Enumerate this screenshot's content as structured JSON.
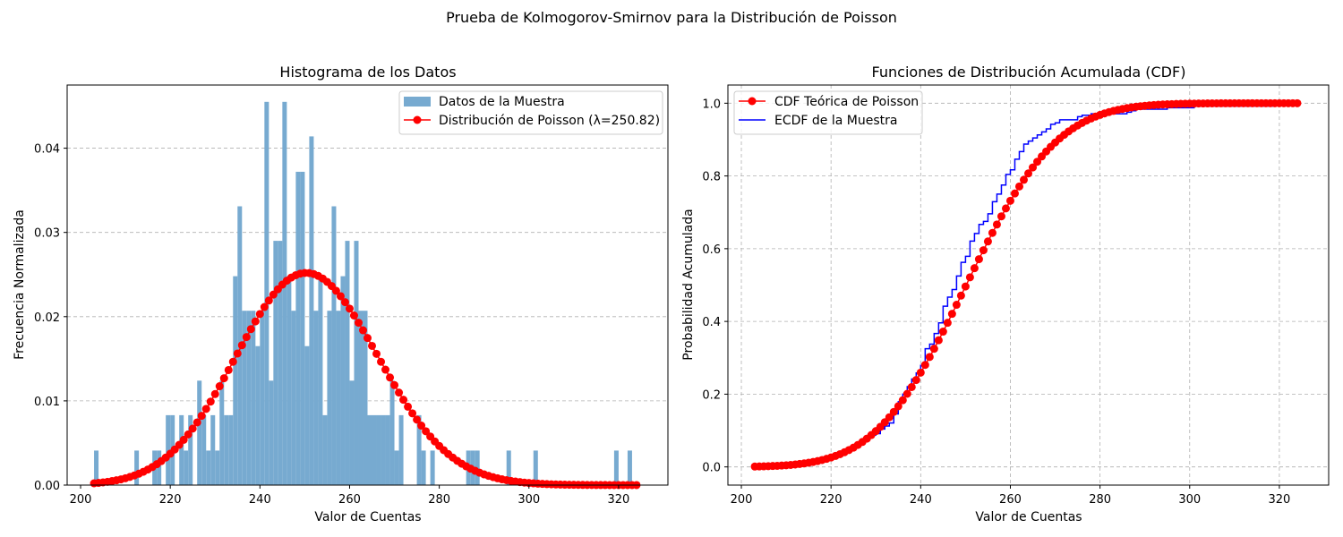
{
  "figure": {
    "suptitle": "Prueba de Kolmogorov-Smirnov para la Distribución de Poisson"
  },
  "colors": {
    "bars": "#77aad0",
    "poisson": "#ff0000",
    "ecdf": "#0000ff",
    "grid": "#b0b0b0"
  },
  "chart_data": [
    {
      "type": "bar",
      "title": "Histograma de los Datos",
      "xlabel": "Valor de Cuentas",
      "ylabel": "Frecuencia Normalizada",
      "xlim": [
        197,
        331
      ],
      "ylim": [
        0,
        0.0475
      ],
      "xticks": [
        200,
        220,
        240,
        260,
        280,
        300,
        320
      ],
      "yticks": [
        0.0,
        0.01,
        0.02,
        0.03,
        0.04
      ],
      "ytick_labels": [
        "0.00",
        "0.01",
        "0.02",
        "0.03",
        "0.04"
      ],
      "grid": "y",
      "legend_loc": "upper right",
      "legend": [
        "Datos de la Muestra",
        "Distribución de Poisson (λ=250.82)"
      ],
      "histogram": {
        "x_min": 203,
        "bin_width": 1,
        "values": [
          0.0041,
          0,
          0,
          0,
          0,
          0,
          0,
          0,
          0,
          0.0041,
          0,
          0,
          0,
          0.0041,
          0.0041,
          0,
          0.0083,
          0.0083,
          0,
          0.0083,
          0.0041,
          0.0083,
          0,
          0.0124,
          0.0083,
          0.0041,
          0.0083,
          0.0041,
          0.0124,
          0.0083,
          0.0083,
          0.0248,
          0.0331,
          0.0207,
          0.0207,
          0.0207,
          0.0165,
          0.0207,
          0.0455,
          0.0124,
          0.029,
          0.029,
          0.0455,
          0.0248,
          0.0207,
          0.0372,
          0.0372,
          0.0165,
          0.0414,
          0.0207,
          0.0248,
          0.0083,
          0.0207,
          0.0331,
          0.0207,
          0.0248,
          0.029,
          0.0124,
          0.029,
          0.0207,
          0.0207,
          0.0083,
          0.0083,
          0.0083,
          0.0083,
          0.0083,
          0.0124,
          0.0041,
          0.0083,
          0,
          0,
          0,
          0.0083,
          0.0041,
          0,
          0.0041,
          0,
          0,
          0,
          0,
          0,
          0,
          0,
          0.0041,
          0.0041,
          0.0041,
          0,
          0,
          0,
          0,
          0,
          0,
          0.0041,
          0,
          0,
          0,
          0,
          0,
          0.0041,
          0,
          0,
          0,
          0,
          0,
          0,
          0,
          0,
          0,
          0,
          0,
          0,
          0,
          0,
          0,
          0,
          0,
          0.0041,
          0,
          0,
          0.0041
        ]
      },
      "series": [
        {
          "name": "Datos de la Muestra",
          "kind": "bar",
          "color": "#77aad0"
        },
        {
          "name": "Distribución de Poisson (λ=250.82)",
          "kind": "line-marker",
          "color": "#ff0000",
          "lambda": 250.82,
          "x_range": [
            203,
            324
          ],
          "step": 1
        }
      ]
    },
    {
      "type": "line",
      "title": "Funciones de Distribución Acumulada (CDF)",
      "xlabel": "Valor de Cuentas",
      "ylabel": "Probabilidad Acumulada",
      "xlim": [
        197,
        331
      ],
      "ylim": [
        -0.05,
        1.05
      ],
      "xticks": [
        200,
        220,
        240,
        260,
        280,
        300,
        320
      ],
      "yticks": [
        0.0,
        0.2,
        0.4,
        0.6,
        0.8,
        1.0
      ],
      "ytick_labels": [
        "0.0",
        "0.2",
        "0.4",
        "0.6",
        "0.8",
        "1.0"
      ],
      "grid": "both",
      "legend_loc": "upper left",
      "legend": [
        "CDF Teórica de Poisson",
        "ECDF de la Muestra"
      ],
      "series": [
        {
          "name": "CDF Teórica de Poisson",
          "kind": "line-marker",
          "color": "#ff0000",
          "lambda": 250.82,
          "x_range": [
            203,
            324
          ],
          "step": 1
        },
        {
          "name": "ECDF de la Muestra",
          "kind": "step",
          "color": "#0000ff",
          "x_min": 203,
          "cumulative_from_histogram": true
        }
      ]
    }
  ]
}
